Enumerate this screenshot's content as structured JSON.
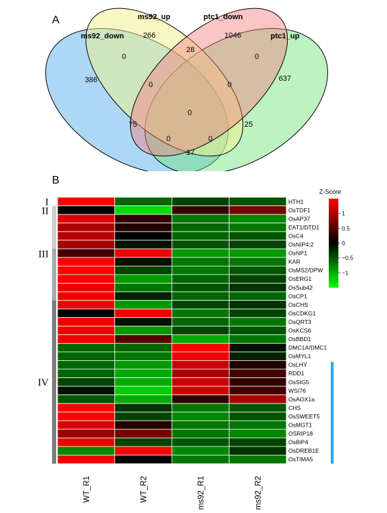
{
  "chart_data": [
    {
      "type": "venn",
      "panel_label": "A",
      "sets": [
        {
          "name": "ms92_down",
          "color": "#4aa8e8"
        },
        {
          "name": "ms92_up",
          "color": "#f2f28a"
        },
        {
          "name": "ptc1_down",
          "color": "#f37f7f"
        },
        {
          "name": "ptc1_up",
          "color": "#6ee27a"
        }
      ],
      "counts": {
        "ms92_down_only": 386,
        "ms92_up_only": 266,
        "ptc1_down_only": 1046,
        "ptc1_up_only": 637,
        "ms92_down__ms92_up": 0,
        "ms92_up__ptc1_down": 28,
        "ptc1_down__ptc1_up": 0,
        "ms92_down__ms92_up__ptc1_down": 0,
        "ms92_up__ptc1_down__ptc1_up": 0,
        "all_four": 0,
        "ms92_down__ptc1_down": 75,
        "ms92_up__ptc1_up": 25,
        "ms92_down__ptc1_down__ptc1_up": 0,
        "ms92_down__ms92_up__ptc1_up": 0,
        "ms92_down__ptc1_up": 17
      }
    },
    {
      "type": "heatmap",
      "panel_label": "B",
      "columns": [
        "WT_R1",
        "WT_R2",
        "ms92_R1",
        "ms92_R2"
      ],
      "rows": [
        "HTH1",
        "OsTDF1",
        "OsAP37",
        "EAT1/DTD1",
        "OsC4",
        "OsNIP4;2",
        "OsNP1",
        "KAR",
        "OsMS2/DPW",
        "OsERG1",
        "OsSub42",
        "OsCP1",
        "OsCHS",
        "OsCDKG1",
        "OsQRT3",
        "OsKCS6",
        "OsBBD1",
        "DMC1A/DMC1",
        "OsMYL1",
        "OsLHY",
        "RDD1",
        "OsSIG5",
        "WSI76",
        "OsAOX1a",
        "CHS",
        "OsSWEET5",
        "OsMGT1",
        "OSRIP18",
        "OsBiP4",
        "OsDREB1E",
        "OsTIMA5"
      ],
      "values": [
        [
          1.5,
          -0.6,
          -0.4,
          -0.5
        ],
        [
          0.0,
          -1.3,
          0.3,
          0.7
        ],
        [
          1.3,
          0.3,
          -0.7,
          -0.8
        ],
        [
          1.0,
          0.2,
          -0.6,
          -0.7
        ],
        [
          1.1,
          0.0,
          -0.6,
          -0.5
        ],
        [
          1.0,
          -0.1,
          -0.5,
          -0.4
        ],
        [
          0.4,
          1.4,
          -0.9,
          -0.9
        ],
        [
          1.5,
          -0.1,
          -0.7,
          -0.7
        ],
        [
          1.5,
          -0.4,
          -0.7,
          -0.5
        ],
        [
          1.5,
          -0.9,
          -0.6,
          -0.4
        ],
        [
          1.4,
          -0.7,
          -0.5,
          -0.3
        ],
        [
          1.4,
          -0.2,
          -0.6,
          -0.6
        ],
        [
          1.4,
          -0.9,
          -0.4,
          -0.3
        ],
        [
          0.0,
          1.4,
          -0.7,
          -0.4
        ],
        [
          1.4,
          -0.1,
          -0.6,
          -0.7
        ],
        [
          1.4,
          -0.9,
          -0.4,
          -0.5
        ],
        [
          1.4,
          0.5,
          -1.0,
          -0.7
        ],
        [
          -0.6,
          -0.6,
          1.5,
          -0.1
        ],
        [
          -0.6,
          -0.7,
          1.4,
          -0.2
        ],
        [
          -0.6,
          -0.9,
          1.2,
          0.2
        ],
        [
          -0.6,
          -1.0,
          1.0,
          0.4
        ],
        [
          -0.4,
          -1.0,
          1.2,
          0.3
        ],
        [
          -0.1,
          -1.2,
          1.2,
          0.4
        ],
        [
          -0.5,
          -1.0,
          0.3,
          1.0
        ],
        [
          1.5,
          -0.3,
          -0.7,
          -0.5
        ],
        [
          1.5,
          -0.4,
          -0.8,
          -0.5
        ],
        [
          1.3,
          0.2,
          -0.7,
          -0.7
        ],
        [
          0.9,
          0.7,
          -0.7,
          -0.8
        ],
        [
          1.4,
          -0.4,
          -0.5,
          -0.4
        ],
        [
          -0.8,
          1.5,
          -0.8,
          -0.3
        ],
        [
          1.4,
          0.0,
          -0.7,
          -0.7
        ]
      ],
      "clusters": [
        {
          "label": "I",
          "rows": [
            0,
            0
          ],
          "shade": "#ffffff"
        },
        {
          "label": "II",
          "rows": [
            1,
            5
          ],
          "shade": "#cfcfcf"
        },
        {
          "label": "III",
          "rows": [
            6,
            11
          ],
          "shade": "#a9a9a9"
        },
        {
          "label": "IV",
          "rows": [
            12,
            30
          ],
          "shade": "#7d7d7d"
        }
      ],
      "highlight": {
        "rows": [
          19,
          30
        ],
        "color": "#2aa7e0"
      },
      "legend": {
        "title": "Z-Score",
        "min": -1.5,
        "max": 1.5,
        "ticks": [
          1,
          0.5,
          0,
          -0.5,
          -1
        ],
        "tick_labels": [
          "1",
          "0.5",
          "0",
          "−0.5",
          "−1"
        ]
      },
      "colors": {
        "high": "#ff0000",
        "mid": "#000000",
        "low": "#00ff00"
      }
    }
  ]
}
